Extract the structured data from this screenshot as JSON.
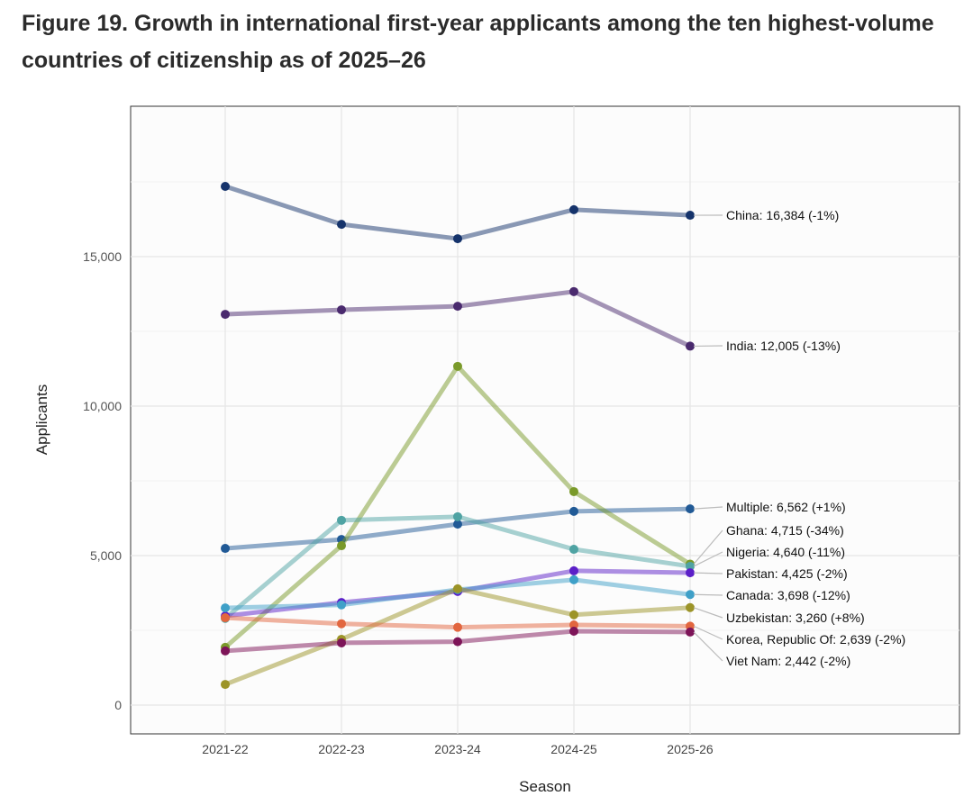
{
  "title": "Figure 19. Growth in international first-year applicants among the ten highest-volume countries of citizenship as of 2025–26",
  "chart_data": {
    "type": "line",
    "title": "Figure 19. Growth in international first-year applicants among the ten highest-volume countries of citizenship as of 2025–26",
    "xlabel": "Season",
    "ylabel": "Applicants",
    "categories": [
      "2021-22",
      "2022-23",
      "2023-24",
      "2024-25",
      "2025-26"
    ],
    "ylim": [
      -900,
      18500
    ],
    "yticks": [
      0,
      5000,
      10000,
      15000
    ],
    "ytick_labels": [
      "0",
      "5,000",
      "10,000",
      "15,000"
    ],
    "grid": true,
    "legend": "none (direct labels at right)",
    "series": [
      {
        "name": "China",
        "label": "China: 16,384 (-1%)",
        "color": "#15336b",
        "values": [
          17350,
          16080,
          15600,
          16570,
          16384
        ]
      },
      {
        "name": "India",
        "label": "India: 12,005 (-13%)",
        "color": "#4a2a6e",
        "values": [
          13070,
          13220,
          13340,
          13830,
          12005
        ]
      },
      {
        "name": "Multiple",
        "label": "Multiple: 6,562 (+1%)",
        "color": "#215a96",
        "values": [
          5240,
          5540,
          6050,
          6480,
          6562
        ]
      },
      {
        "name": "Ghana",
        "label": "Ghana: 4,715 (-34%)",
        "color": "#7a9a2a",
        "values": [
          1930,
          5330,
          11330,
          7140,
          4715
        ]
      },
      {
        "name": "Nigeria",
        "label": "Nigeria: 4,640 (-11%)",
        "color": "#4fa3a3",
        "values": [
          2900,
          6180,
          6300,
          5210,
          4640
        ]
      },
      {
        "name": "Pakistan",
        "label": "Pakistan: 4,425 (-2%)",
        "color": "#5b1fc8",
        "values": [
          2980,
          3430,
          3800,
          4490,
          4425
        ]
      },
      {
        "name": "Canada",
        "label": "Canada: 3,698 (-12%)",
        "color": "#3fa0c8",
        "values": [
          3250,
          3350,
          3860,
          4190,
          3698
        ]
      },
      {
        "name": "Uzbekistan",
        "label": "Uzbekistan: 3,260 (+8%)",
        "color": "#9c9428",
        "values": [
          690,
          2200,
          3890,
          3020,
          3260
        ]
      },
      {
        "name": "Korea, Republic Of",
        "label": "Korea, Republic Of: 2,639 (-2%)",
        "color": "#e2663f",
        "values": [
          2920,
          2720,
          2600,
          2680,
          2639
        ]
      },
      {
        "name": "Viet Nam",
        "label": "Viet Nam: 2,442 (-2%)",
        "color": "#7d1458",
        "values": [
          1810,
          2080,
          2120,
          2470,
          2442
        ]
      }
    ]
  }
}
